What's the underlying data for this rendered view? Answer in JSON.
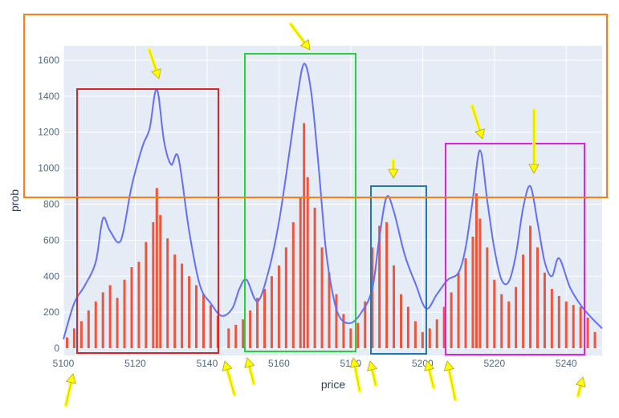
{
  "chart_data": {
    "type": "bar",
    "xlabel": "price",
    "ylabel": "prob",
    "xlim": [
      5100,
      5250
    ],
    "ylim": [
      -40,
      1680
    ],
    "x_ticks": [
      5100,
      5120,
      5140,
      5160,
      5180,
      5200,
      5220,
      5240
    ],
    "x_tick_labels": [
      "5100",
      "5120",
      "5140",
      "5160",
      "5180",
      "5200",
      "5220",
      "5240"
    ],
    "y_ticks": [
      0,
      200,
      400,
      600,
      800,
      1000,
      1200,
      1400,
      1600
    ],
    "y_tick_labels": [
      "0",
      "200",
      "400",
      "600",
      "800",
      "1000",
      "1200",
      "1400",
      "1600"
    ],
    "grid": true,
    "legend": "none",
    "plot_background": "#e5ecf6",
    "bar_color": "#ef553b",
    "line_color": "#636efa",
    "series": [
      {
        "type": "bar",
        "x": [
          5101,
          5103,
          5105,
          5107,
          5109,
          5111,
          5113,
          5115,
          5117,
          5119,
          5121,
          5123,
          5125,
          5126,
          5127,
          5129,
          5131,
          5133,
          5135,
          5137,
          5139,
          5141,
          5143,
          5146,
          5148,
          5150,
          5152,
          5154,
          5156,
          5158,
          5160,
          5162,
          5164,
          5166,
          5167,
          5168,
          5170,
          5172,
          5174,
          5176,
          5178,
          5180,
          5182,
          5184,
          5186,
          5188,
          5190,
          5192,
          5194,
          5196,
          5198,
          5200,
          5202,
          5204,
          5206,
          5208,
          5210,
          5212,
          5214,
          5215,
          5216,
          5218,
          5220,
          5222,
          5224,
          5226,
          5228,
          5230,
          5232,
          5234,
          5236,
          5238,
          5240,
          5242,
          5244,
          5246,
          5248
        ],
        "values": [
          60,
          110,
          150,
          210,
          260,
          310,
          350,
          280,
          380,
          450,
          480,
          590,
          700,
          890,
          740,
          610,
          520,
          470,
          400,
          350,
          300,
          240,
          180,
          110,
          130,
          160,
          210,
          280,
          330,
          400,
          460,
          560,
          700,
          840,
          1250,
          950,
          780,
          560,
          420,
          300,
          190,
          110,
          140,
          260,
          560,
          680,
          700,
          460,
          300,
          230,
          150,
          90,
          110,
          160,
          230,
          310,
          420,
          500,
          620,
          860,
          720,
          560,
          380,
          300,
          260,
          340,
          520,
          680,
          560,
          420,
          330,
          290,
          260,
          240,
          230,
          170,
          90
        ]
      },
      {
        "type": "line",
        "x": [
          5100,
          5103,
          5106,
          5109,
          5111,
          5113,
          5116,
          5119,
          5122,
          5124,
          5126,
          5128,
          5130,
          5132,
          5135,
          5138,
          5141,
          5144,
          5147,
          5149,
          5151,
          5154,
          5157,
          5160,
          5163,
          5165,
          5167,
          5169,
          5171,
          5173,
          5175,
          5177,
          5180,
          5183,
          5186,
          5188,
          5190,
          5192,
          5195,
          5198,
          5201,
          5204,
          5207,
          5210,
          5212,
          5214,
          5216,
          5218,
          5220,
          5222,
          5224,
          5226,
          5228,
          5230,
          5232,
          5234,
          5236,
          5238,
          5241,
          5244,
          5247,
          5250
        ],
        "values": [
          50,
          250,
          350,
          480,
          720,
          650,
          600,
          900,
          1120,
          1220,
          1440,
          1150,
          1020,
          1060,
          650,
          350,
          250,
          180,
          220,
          330,
          380,
          260,
          420,
          700,
          1100,
          1380,
          1580,
          1420,
          1020,
          560,
          300,
          170,
          140,
          200,
          330,
          620,
          840,
          760,
          520,
          360,
          220,
          300,
          380,
          420,
          560,
          830,
          1100,
          820,
          550,
          380,
          370,
          520,
          780,
          900,
          700,
          480,
          400,
          500,
          340,
          240,
          170,
          110
        ]
      }
    ],
    "annotations": {
      "boxes": [
        {
          "color": "#d62728"
        },
        {
          "color": "#2ecc40"
        },
        {
          "color": "#1f77b4"
        },
        {
          "color": "#e020e0"
        },
        {
          "color": "#ff7f0e"
        }
      ],
      "arrow_color": "#ffff00"
    }
  }
}
